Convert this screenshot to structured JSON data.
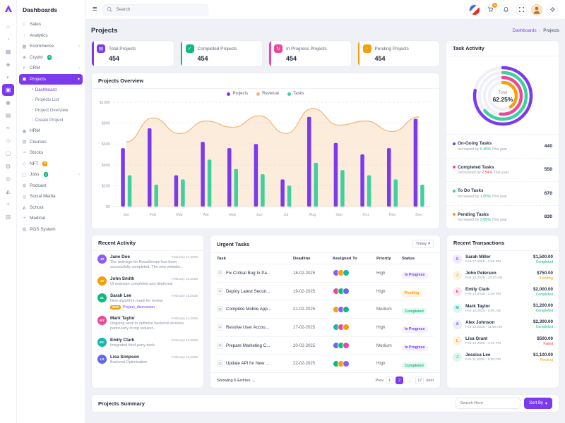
{
  "colors": {
    "primary": "#7c3aed",
    "success": "#10b981",
    "pink": "#ec4899",
    "warning": "#f59e0b",
    "danger": "#ef4444"
  },
  "sidebar": {
    "title": "Dashboards",
    "items": [
      {
        "label": "Sales",
        "glyph": "⌂"
      },
      {
        "label": "Analytics",
        "glyph": "◔"
      },
      {
        "label": "Ecommerce",
        "glyph": "▦",
        "arrow": true
      },
      {
        "label": "Crypto",
        "glyph": "◈",
        "badge": "5",
        "badge_color": "#10b981"
      },
      {
        "label": "CRM",
        "glyph": "◐",
        "arrow": true
      },
      {
        "label": "Projects",
        "glyph": "▣",
        "active": true,
        "arrow": true,
        "open": true,
        "children": [
          {
            "label": "Dashboard",
            "active": true
          },
          {
            "label": "Projects List"
          },
          {
            "label": "Project Overview"
          },
          {
            "label": "Create Project"
          }
        ]
      },
      {
        "label": "HRM",
        "glyph": "◉"
      },
      {
        "label": "Courses",
        "glyph": "▤"
      },
      {
        "label": "Stocks",
        "glyph": "≈"
      },
      {
        "label": "NFT",
        "glyph": "◇",
        "badge": "6",
        "badge_color": "#f59e0b"
      },
      {
        "label": "Jobs",
        "glyph": "▢",
        "badge": "2",
        "badge_color": "#10b981",
        "arrow": true
      },
      {
        "label": "Podcast",
        "glyph": "◍"
      },
      {
        "label": "Social Media",
        "glyph": "◎"
      },
      {
        "label": "School",
        "glyph": "◭"
      },
      {
        "label": "Medical",
        "glyph": "+"
      },
      {
        "label": "POS System",
        "glyph": "▥"
      }
    ]
  },
  "header": {
    "search_placeholder": "Search",
    "cart_badge": "5"
  },
  "page": {
    "title": "Projects",
    "breadcrumb": [
      "Dashboards",
      "Projects"
    ]
  },
  "stats": [
    {
      "title": "Total Projects",
      "value": "454",
      "color": "#7c3aed",
      "glyph": "▤"
    },
    {
      "title": "Completed Projects",
      "value": "454",
      "color": "#10b981",
      "glyph": "✓"
    },
    {
      "title": "In Progress Projects",
      "value": "454",
      "color": "#ec4899",
      "glyph": "↻"
    },
    {
      "title": "Pending Projects",
      "value": "454",
      "color": "#f59e0b",
      "glyph": "◔"
    }
  ],
  "overview": {
    "title": "Projects Overview",
    "legend": [
      {
        "label": "Projects",
        "color": "#7c3aed"
      },
      {
        "label": "Revenue",
        "color": "#f2b577"
      },
      {
        "label": "Tasks",
        "color": "#3ed0a0"
      }
    ]
  },
  "chart_data": {
    "type": "combo",
    "categories": [
      "Jan",
      "Feb",
      "Mar",
      "Apr",
      "May",
      "Jun",
      "Jul",
      "Aug",
      "Sep",
      "Oct",
      "Nov",
      "Dec"
    ],
    "series": [
      {
        "name": "Projects",
        "type": "bar",
        "color": "#7c3aed",
        "values": [
          560,
          750,
          300,
          620,
          560,
          600,
          260,
          860,
          610,
          500,
          560,
          840
        ]
      },
      {
        "name": "Revenue",
        "type": "area",
        "color": "#f2b577",
        "values": [
          620,
          850,
          700,
          820,
          760,
          870,
          700,
          940,
          780,
          820,
          720,
          860
        ]
      },
      {
        "name": "Tasks",
        "type": "bar",
        "color": "#3ed0a0",
        "values": [
          300,
          210,
          260,
          450,
          360,
          310,
          200,
          420,
          350,
          300,
          260,
          210
        ]
      }
    ],
    "ylim": [
      0,
      1000
    ],
    "yticks": [
      "$0",
      "$200",
      "$400",
      "$600",
      "$800",
      "$1000"
    ],
    "grid": true,
    "legend_position": "top"
  },
  "task_activity": {
    "title": "Task Activity",
    "total_label": "Total",
    "total_value": "62.25%",
    "rings": [
      {
        "r": 40,
        "color": "#7c3aed",
        "pct": 78
      },
      {
        "r": 33,
        "color": "#3ed0a0",
        "pct": 64
      },
      {
        "r": 26,
        "color": "#ec4899",
        "pct": 52
      },
      {
        "r": 19,
        "color": "#f59e0b",
        "pct": 40
      }
    ],
    "items": [
      {
        "label": "On-Going Tasks",
        "prefix": "Increased by",
        "change": "0.45%",
        "period": "This year",
        "value": "440",
        "color": "#7c3aed",
        "change_color": "#10b981"
      },
      {
        "label": "Completed Tasks",
        "prefix": "Decreased by",
        "change": "2.54%",
        "period": "This year",
        "value": "550",
        "color": "#ec4899",
        "change_color": "#ef4444"
      },
      {
        "label": "To Do Tasks",
        "prefix": "Increased by",
        "change": "1.05%",
        "period": "This year",
        "value": "670",
        "color": "#3ed0a0",
        "change_color": "#10b981"
      },
      {
        "label": "Pending Tasks",
        "prefix": "Increased by",
        "change": "3.05%",
        "period": "This year",
        "value": "830",
        "color": "#f59e0b",
        "change_color": "#10b981"
      }
    ]
  },
  "recent_activity": {
    "title": "Recent Activity",
    "items": [
      {
        "name": "Jane Doe",
        "date": "February 17,2025",
        "text": "The redesign for NovaStream has been successfully completed. The new website...",
        "initials": "JD",
        "color": "#8b5cf6"
      },
      {
        "name": "John Smith",
        "date": "February 16,2025",
        "text": "UI redesign completed and deployed.",
        "initials": "JS",
        "color": "#f59e0b"
      },
      {
        "name": "Sarah Lee",
        "date": "February 15,2025",
        "text": "New algorithm ready for review.",
        "badge": "NEW",
        "link": "Project_discussion",
        "initials": "SL",
        "color": "#10b981"
      },
      {
        "name": "Mark Taylor",
        "date": "February 14,2025",
        "text": "Ongoing work to optimize backend services, particularly in trip request...",
        "initials": "MT",
        "color": "#ec4899"
      },
      {
        "name": "Emily Clark",
        "date": "February 13,2025",
        "text": "Integrated third-party tools",
        "initials": "EC",
        "color": "#14b8a6"
      },
      {
        "name": "Lisa Simpson",
        "date": "February 12,2025",
        "text": "Backend Optimization",
        "initials": "LS",
        "color": "#6366f1"
      }
    ]
  },
  "urgent_tasks": {
    "title": "Urgent Tasks",
    "filter_label": "Today",
    "columns": [
      "Task",
      "Deadline",
      "Assigned To",
      "Priority",
      "Status"
    ],
    "rows": [
      {
        "task": "Fix Critical Bug In Pa...",
        "deadline": "18-02-2025",
        "priority": "High",
        "status": "In Progress",
        "avatar_colors": [
          "#8b5cf6",
          "#f59e0b",
          "#14b8a6"
        ]
      },
      {
        "task": "Deploy Latest Securi...",
        "deadline": "19-02-2025",
        "priority": "High",
        "status": "Pending",
        "avatar_colors": [
          "#ec4899",
          "#10b981",
          "#6366f1"
        ]
      },
      {
        "task": "Complete Mobile App...",
        "deadline": "21-02-2025",
        "priority": "Medium",
        "status": "Completed",
        "avatar_colors": [
          "#f59e0b",
          "#8b5cf6",
          "#10b981"
        ]
      },
      {
        "task": "Resolve User Accou...",
        "deadline": "17-02-2025",
        "priority": "High",
        "status": "In Progress",
        "avatar_colors": [
          "#14b8a6",
          "#ec4899",
          "#f59e0b"
        ]
      },
      {
        "task": "Prepare Marketing C...",
        "deadline": "20-02-2025",
        "priority": "Medium",
        "status": "In Progress",
        "avatar_colors": [
          "#6366f1",
          "#10b981",
          "#ec4899"
        ]
      },
      {
        "task": "Update API for New ...",
        "deadline": "22-02-2025",
        "priority": "High",
        "status": "Completed",
        "avatar_colors": [
          "#10b981",
          "#f59e0b",
          "#8b5cf6"
        ]
      }
    ],
    "showing": "Showing 6 Entries",
    "pagination": {
      "prev": "Prev",
      "pages": [
        "1",
        "2",
        "…",
        "17"
      ],
      "active": "2",
      "next": "next"
    }
  },
  "transactions": {
    "title": "Recent Transactions",
    "rows": [
      {
        "name": "Sarah Miller",
        "date": "Feb 17,2025 - 3:45 PM",
        "amount": "$1,500.00",
        "status": "Completed",
        "status_color": "#10b981",
        "initial": "S",
        "color": "#8b5cf6"
      },
      {
        "name": "John Peterson",
        "date": "Feb 10,2025 - 10:20 AM",
        "amount": "$750.00",
        "status": "Pending",
        "status_color": "#f59e0b",
        "initial": "J",
        "color": "#f59e0b"
      },
      {
        "name": "Emily Clark",
        "date": "Feb 12,2025 - 2:30 PM",
        "amount": "$2,000.00",
        "status": "Completed",
        "status_color": "#10b981",
        "initial": "E",
        "color": "#ec4899"
      },
      {
        "name": "Mark Taylor",
        "date": "Feb 15,2025 - 9:00 AM",
        "amount": "$1,200.00",
        "status": "Completed",
        "status_color": "#10b981",
        "initial": "M",
        "color": "#14b8a6"
      },
      {
        "name": "Alex Johnson",
        "date": "Feb 12,2025 - 11:55 AM",
        "amount": "$2,300.00",
        "status": "Completed",
        "status_color": "#10b981",
        "initial": "A",
        "color": "#6366f1"
      },
      {
        "name": "Lisa Grant",
        "date": "Feb 13,2025 - 4:10 PM",
        "amount": "$500.00",
        "status": "Failed",
        "status_color": "#ef4444",
        "initial": "L",
        "color": "#f59e0b"
      },
      {
        "name": "Jessica Lee",
        "date": "Feb 11,2025 - 5:30 PM",
        "amount": "$1,100.00",
        "status": "Pending",
        "status_color": "#f59e0b",
        "initial": "J",
        "color": "#10b981"
      }
    ]
  },
  "summary": {
    "title": "Projects Summary",
    "search_placeholder": "Search Here",
    "sort_label": "Sort By"
  }
}
